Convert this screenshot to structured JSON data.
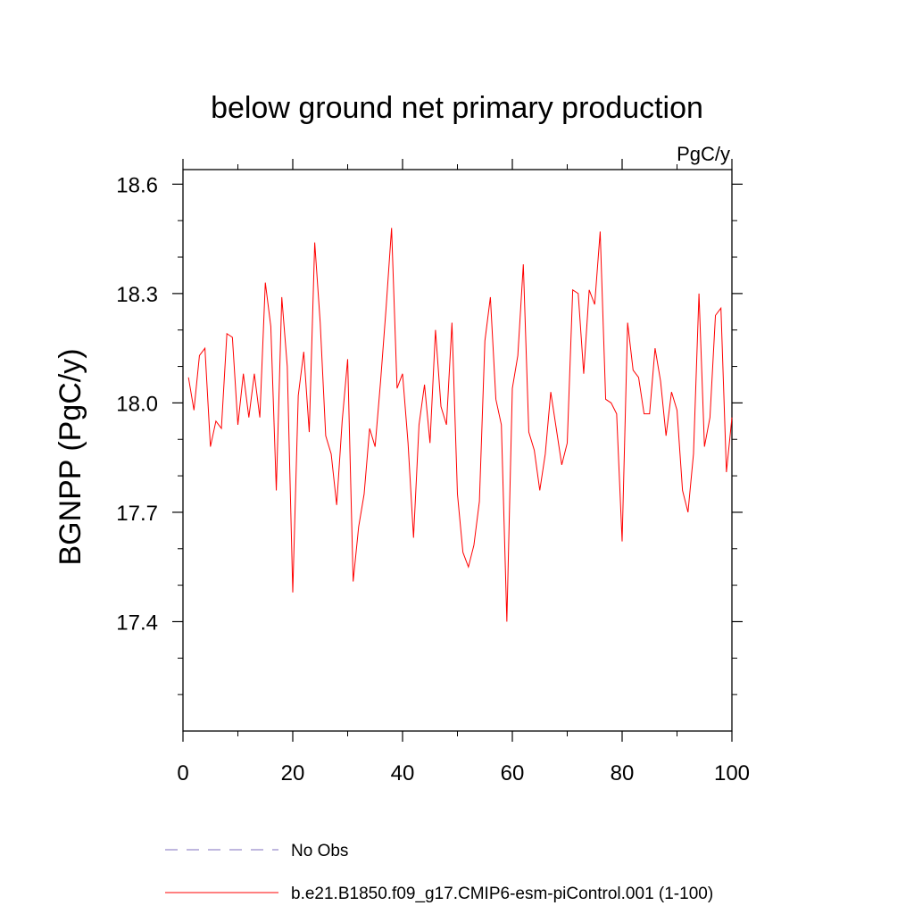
{
  "chart_data": {
    "type": "line",
    "title": "below ground net primary production",
    "units": "PgC/y",
    "xlabel": "",
    "ylabel": "BGNPP  (PgC/y)",
    "xlim": [
      0,
      100
    ],
    "ylim": [
      17.1,
      18.64
    ],
    "x_ticks": [
      0,
      20,
      40,
      60,
      80,
      100
    ],
    "x_tick_labels": [
      "0",
      "20",
      "40",
      "60",
      "80",
      "100"
    ],
    "x_minor_ticks": [
      10,
      30,
      50,
      70,
      90
    ],
    "y_ticks": [
      17.4,
      17.7,
      18.0,
      18.3,
      18.6
    ],
    "y_tick_labels": [
      "17.4",
      "17.7",
      "18.0",
      "18.3",
      "18.6"
    ],
    "y_minor_ticks": [
      17.2,
      17.3,
      17.5,
      17.6,
      17.8,
      17.9,
      18.1,
      18.2,
      18.4,
      18.5
    ],
    "grid": false,
    "legend_position": "bottom",
    "series": [
      {
        "name": "b.e21.B1850.f09_g17.CMIP6-esm-piControl.001 (1-100)",
        "color": "#ff0000",
        "style": "solid",
        "x": [
          1,
          2,
          3,
          4,
          5,
          6,
          7,
          8,
          9,
          10,
          11,
          12,
          13,
          14,
          15,
          16,
          17,
          18,
          19,
          20,
          21,
          22,
          23,
          24,
          25,
          26,
          27,
          28,
          29,
          30,
          31,
          32,
          33,
          34,
          35,
          36,
          37,
          38,
          39,
          40,
          41,
          42,
          43,
          44,
          45,
          46,
          47,
          48,
          49,
          50,
          51,
          52,
          53,
          54,
          55,
          56,
          57,
          58,
          59,
          60,
          61,
          62,
          63,
          64,
          65,
          66,
          67,
          68,
          69,
          70,
          71,
          72,
          73,
          74,
          75,
          76,
          77,
          78,
          79,
          80,
          81,
          82,
          83,
          84,
          85,
          86,
          87,
          88,
          89,
          90,
          91,
          92,
          93,
          94,
          95,
          96,
          97,
          98,
          99,
          100
        ],
        "values": [
          18.07,
          17.98,
          18.13,
          18.15,
          17.88,
          17.95,
          17.93,
          18.19,
          18.18,
          17.94,
          18.08,
          17.96,
          18.08,
          17.96,
          18.33,
          18.21,
          17.76,
          18.29,
          18.1,
          17.48,
          18.02,
          18.14,
          17.92,
          18.44,
          18.22,
          17.91,
          17.86,
          17.72,
          17.95,
          18.12,
          17.51,
          17.66,
          17.75,
          17.93,
          17.88,
          18.06,
          18.26,
          18.48,
          18.04,
          18.08,
          17.89,
          17.63,
          17.94,
          18.05,
          17.89,
          18.2,
          17.99,
          17.94,
          18.22,
          17.75,
          17.59,
          17.55,
          17.61,
          17.73,
          18.17,
          18.29,
          18.01,
          17.94,
          17.4,
          18.04,
          18.13,
          18.38,
          17.92,
          17.87,
          17.76,
          17.86,
          18.03,
          17.93,
          17.83,
          17.89,
          18.31,
          18.3,
          18.08,
          18.31,
          18.27,
          18.47,
          18.01,
          18.0,
          17.97,
          17.62,
          18.22,
          18.09,
          18.07,
          17.97,
          17.97,
          18.15,
          18.06,
          17.91,
          18.03,
          17.98,
          17.76,
          17.7,
          17.86,
          18.3,
          17.88,
          17.96,
          18.24,
          18.26,
          17.81,
          17.96
        ]
      },
      {
        "name": "No Obs",
        "color": "#7f6fbf",
        "style": "dashed",
        "x": [],
        "values": []
      }
    ]
  }
}
